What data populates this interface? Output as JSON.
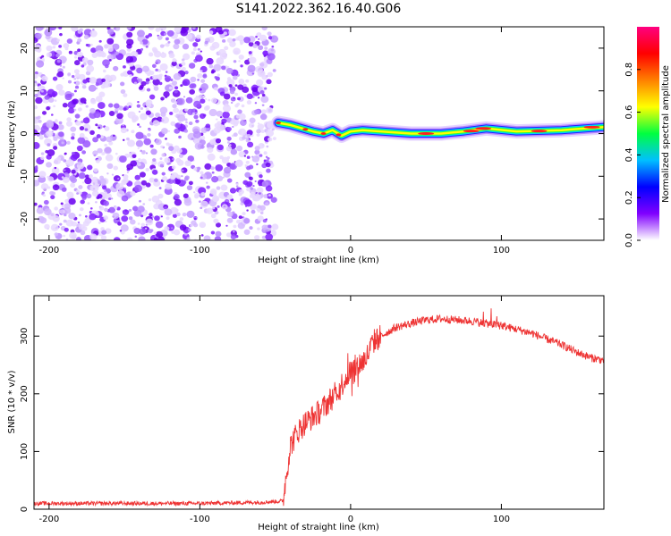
{
  "title": "S141.2022.362.16.40.G06",
  "chart_data": [
    {
      "type": "heatmap",
      "xlabel": "Height of straight line (km)",
      "ylabel": "Frequency (Hz)",
      "xlim": [
        -210,
        168
      ],
      "ylim": [
        -25,
        25
      ],
      "xticks": [
        -200,
        -100,
        0,
        100
      ],
      "yticks": [
        -20,
        -10,
        0,
        10,
        20
      ],
      "noise_region_x": [
        -210,
        -50
      ],
      "ridge": [
        {
          "x": -48,
          "y": 2.5
        },
        {
          "x": -40,
          "y": 2.0
        },
        {
          "x": -32,
          "y": 1.2
        },
        {
          "x": -25,
          "y": 0.5
        },
        {
          "x": -18,
          "y": 0.0
        },
        {
          "x": -12,
          "y": 0.8
        },
        {
          "x": -6,
          "y": -0.5
        },
        {
          "x": 0,
          "y": 0.5
        },
        {
          "x": 8,
          "y": 0.8
        },
        {
          "x": 20,
          "y": 0.5
        },
        {
          "x": 40,
          "y": 0.0
        },
        {
          "x": 60,
          "y": 0.0
        },
        {
          "x": 75,
          "y": 0.5
        },
        {
          "x": 90,
          "y": 1.2
        },
        {
          "x": 110,
          "y": 0.5
        },
        {
          "x": 140,
          "y": 0.8
        },
        {
          "x": 168,
          "y": 1.5
        }
      ],
      "colorbar": {
        "label": "Normalized spectral amplitude",
        "range": [
          0,
          1
        ],
        "ticks": [
          0.0,
          0.2,
          0.4,
          0.6,
          0.8
        ],
        "tick_labels": [
          "0.0",
          "0.2",
          "0.4",
          "0.6",
          "0.8"
        ],
        "colors": [
          "#ffffff",
          "#8000ff",
          "#0000ff",
          "#00c0ff",
          "#00ff40",
          "#ffff00",
          "#ff8000",
          "#ff0000",
          "#ff0080"
        ]
      }
    },
    {
      "type": "line",
      "xlabel": "Height of straight line (km)",
      "ylabel": "SNR (10 * v/v)",
      "xlim": [
        -210,
        168
      ],
      "ylim": [
        0,
        370
      ],
      "xticks": [
        -200,
        -100,
        0,
        100
      ],
      "yticks": [
        0,
        100,
        200,
        300
      ],
      "color": "#ee3333",
      "series": [
        {
          "x": [
            -210,
            -150,
            -100,
            -60,
            -45,
            -40,
            -35,
            -30,
            -25,
            -20,
            -15,
            -10,
            -5,
            0,
            5,
            10,
            15,
            20,
            30,
            40,
            50,
            60,
            70,
            80,
            90,
            100,
            110,
            120,
            130,
            140,
            150,
            160,
            168
          ],
          "values": [
            10,
            10,
            10,
            12,
            14,
            110,
            135,
            150,
            160,
            170,
            185,
            200,
            220,
            240,
            250,
            260,
            290,
            300,
            315,
            322,
            328,
            330,
            328,
            326,
            322,
            318,
            312,
            305,
            295,
            285,
            272,
            262,
            258
          ]
        }
      ]
    }
  ]
}
